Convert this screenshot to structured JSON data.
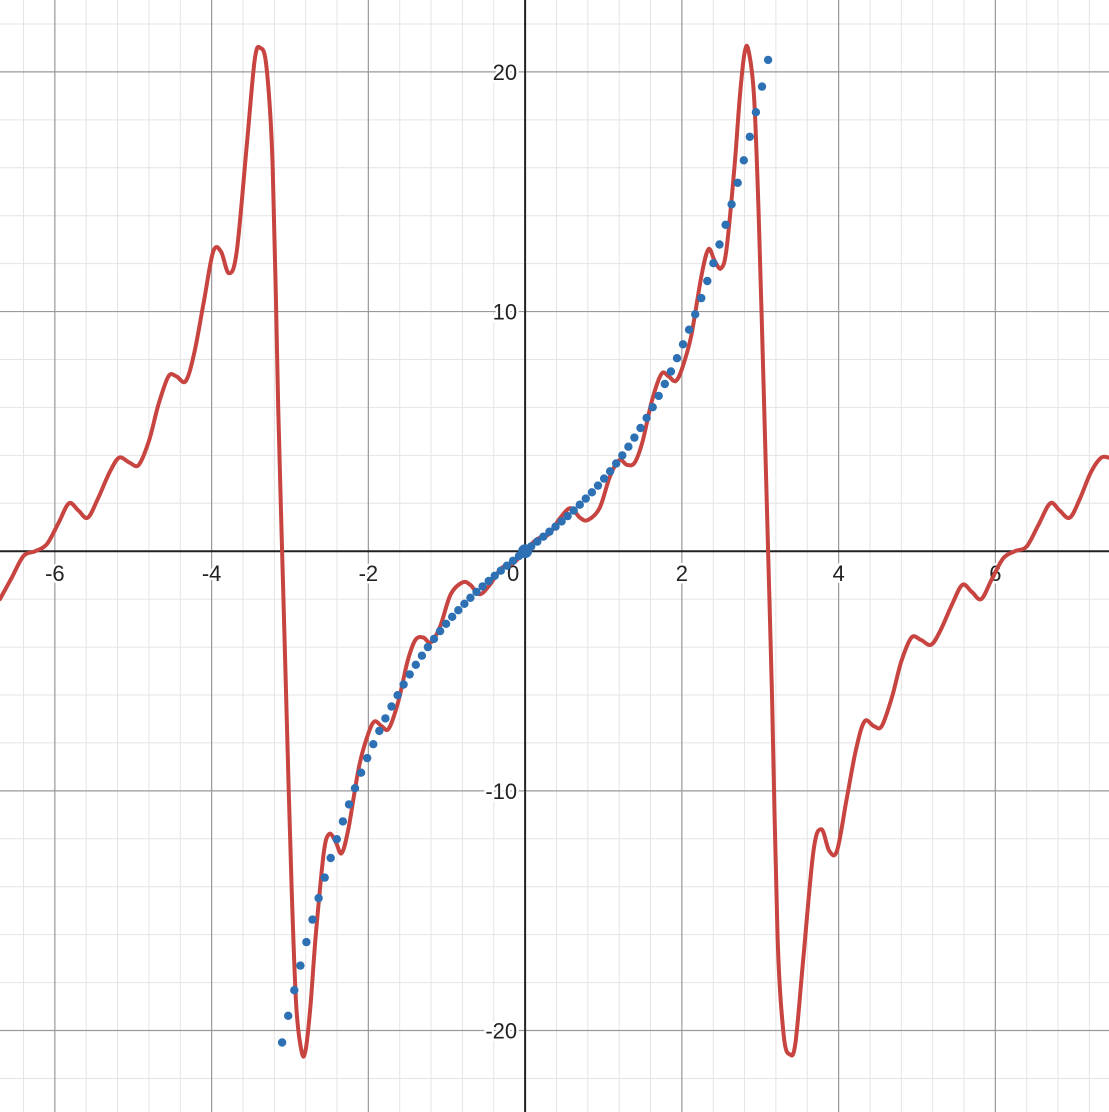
{
  "chart_data": {
    "type": "line",
    "title": "",
    "xlabel": "",
    "ylabel": "",
    "xlim": [
      -6.7,
      7.45
    ],
    "ylim": [
      -23.4,
      23.0
    ],
    "grid": true,
    "legend": "none",
    "x_ticks": [
      {
        "value": -6,
        "label": "-6"
      },
      {
        "value": -4,
        "label": "-4"
      },
      {
        "value": -2,
        "label": "-2"
      },
      {
        "value": 0,
        "label": "0"
      },
      {
        "value": 2,
        "label": "2"
      },
      {
        "value": 4,
        "label": "4"
      },
      {
        "value": 6,
        "label": "6"
      }
    ],
    "y_ticks": [
      {
        "value": 20,
        "label": "20"
      },
      {
        "value": 10,
        "label": "10"
      },
      {
        "value": -10,
        "label": "-10"
      },
      {
        "value": -20,
        "label": "-20"
      }
    ],
    "minor_x_step": 0.4,
    "minor_y_step": 2,
    "series": [
      {
        "kind": "curve",
        "color": "#c74440",
        "points": [
          [
            -6.7,
            -2.0
          ],
          [
            -6.55,
            -1.1
          ],
          [
            -6.4,
            -0.2
          ],
          [
            -6.25,
            0.0
          ],
          [
            -6.1,
            0.3
          ],
          [
            -5.95,
            1.2
          ],
          [
            -5.82,
            2.0
          ],
          [
            -5.7,
            1.7
          ],
          [
            -5.58,
            1.4
          ],
          [
            -5.45,
            2.2
          ],
          [
            -5.3,
            3.3
          ],
          [
            -5.18,
            3.9
          ],
          [
            -5.05,
            3.7
          ],
          [
            -4.93,
            3.6
          ],
          [
            -4.8,
            4.6
          ],
          [
            -4.68,
            6.1
          ],
          [
            -4.55,
            7.3
          ],
          [
            -4.45,
            7.3
          ],
          [
            -4.33,
            7.1
          ],
          [
            -4.22,
            8.3
          ],
          [
            -4.1,
            10.4
          ],
          [
            -3.98,
            12.5
          ],
          [
            -3.88,
            12.5
          ],
          [
            -3.78,
            11.6
          ],
          [
            -3.68,
            12.5
          ],
          [
            -3.55,
            17.0
          ],
          [
            -3.45,
            20.5
          ],
          [
            -3.38,
            21.0
          ],
          [
            -3.3,
            20.2
          ],
          [
            -3.22,
            16.0
          ],
          [
            -3.15,
            6.0
          ],
          [
            -3.1,
            0.0
          ],
          [
            -3.05,
            -6.0
          ],
          [
            -2.98,
            -14.0
          ],
          [
            -2.92,
            -19.0
          ],
          [
            -2.85,
            -20.9
          ],
          [
            -2.8,
            -20.8
          ],
          [
            -2.74,
            -19.0
          ],
          [
            -2.67,
            -16.0
          ],
          [
            -2.57,
            -12.6
          ],
          [
            -2.5,
            -11.8
          ],
          [
            -2.42,
            -12.1
          ],
          [
            -2.34,
            -12.6
          ],
          [
            -2.25,
            -11.5
          ],
          [
            -2.12,
            -9.0
          ],
          [
            -2.0,
            -7.6
          ],
          [
            -1.92,
            -7.1
          ],
          [
            -1.83,
            -7.3
          ],
          [
            -1.74,
            -7.4
          ],
          [
            -1.62,
            -6.3
          ],
          [
            -1.5,
            -4.6
          ],
          [
            -1.4,
            -3.7
          ],
          [
            -1.3,
            -3.6
          ],
          [
            -1.2,
            -3.8
          ],
          [
            -1.08,
            -3.1
          ],
          [
            -0.95,
            -1.8
          ],
          [
            -0.8,
            -1.3
          ],
          [
            -0.7,
            -1.4
          ],
          [
            -0.58,
            -1.8
          ],
          [
            -0.45,
            -1.4
          ],
          [
            -0.3,
            -0.7
          ],
          [
            -0.15,
            -0.5
          ],
          [
            0.0,
            0.0
          ],
          [
            0.15,
            0.5
          ],
          [
            0.3,
            0.7
          ],
          [
            0.45,
            1.4
          ],
          [
            0.58,
            1.8
          ],
          [
            0.7,
            1.4
          ],
          [
            0.8,
            1.3
          ],
          [
            0.95,
            1.8
          ],
          [
            1.08,
            3.1
          ],
          [
            1.2,
            3.8
          ],
          [
            1.3,
            3.6
          ],
          [
            1.4,
            3.7
          ],
          [
            1.5,
            4.6
          ],
          [
            1.62,
            6.3
          ],
          [
            1.74,
            7.4
          ],
          [
            1.83,
            7.3
          ],
          [
            1.92,
            7.1
          ],
          [
            2.0,
            7.6
          ],
          [
            2.12,
            9.0
          ],
          [
            2.25,
            11.5
          ],
          [
            2.34,
            12.6
          ],
          [
            2.42,
            12.1
          ],
          [
            2.5,
            11.8
          ],
          [
            2.57,
            12.6
          ],
          [
            2.67,
            16.0
          ],
          [
            2.74,
            19.0
          ],
          [
            2.8,
            20.8
          ],
          [
            2.85,
            20.9
          ],
          [
            2.92,
            19.0
          ],
          [
            2.98,
            14.0
          ],
          [
            3.05,
            6.0
          ],
          [
            3.1,
            0.0
          ],
          [
            3.15,
            -6.0
          ],
          [
            3.22,
            -16.0
          ],
          [
            3.3,
            -20.2
          ],
          [
            3.38,
            -21.0
          ],
          [
            3.45,
            -20.5
          ],
          [
            3.55,
            -17.0
          ],
          [
            3.68,
            -12.5
          ],
          [
            3.78,
            -11.6
          ],
          [
            3.88,
            -12.5
          ],
          [
            3.98,
            -12.5
          ],
          [
            4.1,
            -10.4
          ],
          [
            4.22,
            -8.3
          ],
          [
            4.33,
            -7.1
          ],
          [
            4.45,
            -7.3
          ],
          [
            4.55,
            -7.3
          ],
          [
            4.68,
            -6.1
          ],
          [
            4.8,
            -4.6
          ],
          [
            4.93,
            -3.6
          ],
          [
            5.05,
            -3.7
          ],
          [
            5.18,
            -3.9
          ],
          [
            5.3,
            -3.3
          ],
          [
            5.45,
            -2.2
          ],
          [
            5.58,
            -1.4
          ],
          [
            5.7,
            -1.7
          ],
          [
            5.82,
            -2.0
          ],
          [
            5.95,
            -1.2
          ],
          [
            6.1,
            -0.3
          ],
          [
            6.25,
            0.0
          ],
          [
            6.4,
            0.2
          ],
          [
            6.55,
            1.1
          ],
          [
            6.7,
            2.0
          ],
          [
            6.82,
            1.7
          ],
          [
            6.95,
            1.4
          ],
          [
            7.08,
            2.2
          ],
          [
            7.22,
            3.3
          ],
          [
            7.35,
            3.9
          ],
          [
            7.45,
            3.9
          ]
        ]
      },
      {
        "kind": "dots",
        "color": "#2d70b3",
        "x_start": -3.1,
        "x_end": 3.1,
        "x_step": 0.0775,
        "y_formula": "odd-cubic",
        "y_at_1": 3.0,
        "y_at_end": 20.5
      },
      {
        "kind": "points",
        "color": "#2d70b3",
        "points": [
          [
            0,
            0
          ]
        ]
      }
    ]
  }
}
